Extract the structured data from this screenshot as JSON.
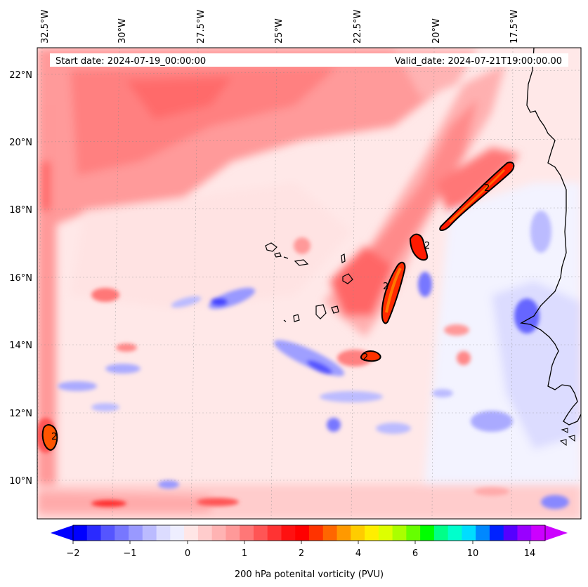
{
  "header": {
    "start_date": "Start date: 2024-07-19_00:00:00",
    "valid_date": "Valid_date: 2024-07-21T19:00:00.00"
  },
  "map": {
    "lon_labels": [
      "32.5°W",
      "30°W",
      "27.5°W",
      "25°W",
      "22.5°W",
      "20°W",
      "17.5°W"
    ],
    "lat_labels": [
      "22°N",
      "20°N",
      "18°N",
      "16°N",
      "14°N",
      "12°N",
      "10°N"
    ],
    "contour_label": "2",
    "features": [
      "pv-field-contours",
      "cape-verde-islands",
      "west-africa-coastline",
      "gridlines"
    ]
  },
  "colorbar": {
    "ticks": [
      "−2",
      "−1",
      "0",
      "1",
      "2",
      "4",
      "6",
      "10",
      "14"
    ],
    "label": "200 hPa potenital vorticity (PVU)",
    "colors": [
      "#0000ff",
      "#2a2aff",
      "#5555ff",
      "#7777ff",
      "#9999ff",
      "#bbbbff",
      "#dcdcff",
      "#eeeeff",
      "#ffe6e6",
      "#ffcccc",
      "#ffb3b3",
      "#ff9999",
      "#ff7777",
      "#ff5555",
      "#ff3333",
      "#ff1111",
      "#ff0000",
      "#ff3300",
      "#ff6600",
      "#ff9900",
      "#ffcc00",
      "#ffee00",
      "#ddff00",
      "#aaff00",
      "#66ff00",
      "#00ff00",
      "#00ff88",
      "#00ffcc",
      "#00ddff",
      "#0088ff",
      "#0022ff",
      "#5500ff",
      "#9900ff",
      "#cc00ff"
    ],
    "extend_low_color": "#0000ff",
    "extend_high_color": "#cc00ff"
  }
}
